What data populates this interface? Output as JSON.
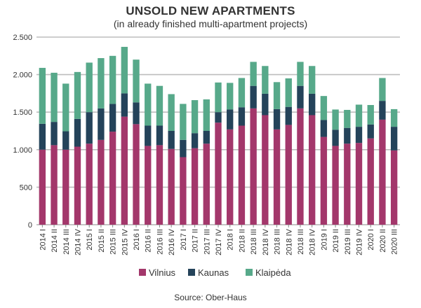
{
  "header": {
    "title": "UNSOLD NEW APARTMENTS",
    "subtitle": "(in already finished multi-apartment projects)"
  },
  "source": "Source: Ober-Haus",
  "chart_data": {
    "type": "bar",
    "stacked": true,
    "title": "UNSOLD NEW APARTMENTS",
    "subtitle": "(in already finished multi-apartment projects)",
    "xlabel": "",
    "ylabel": "",
    "ylim": [
      0,
      2500
    ],
    "yticks": [
      0,
      500,
      1000,
      1500,
      2000,
      2500
    ],
    "ytick_labels": [
      "0",
      "500",
      "1.000",
      "1.500",
      "2.000",
      "2.500"
    ],
    "grid": "horizontal",
    "legend_position": "bottom",
    "categories": [
      "2014 I",
      "2014 II",
      "2014 III",
      "2014 IV",
      "2015 I",
      "2015 II",
      "2015 III",
      "2015 IV",
      "2016 I",
      "2016 II",
      "2016 III",
      "2016 IV",
      "2017 I",
      "2017 II",
      "2017 III",
      "2017 IV",
      "2018 I",
      "2018 II",
      "2018 III",
      "2018 IV",
      "2018 III",
      "2018 IV",
      "2018 III",
      "2018 IV",
      "2019 I",
      "2019 II",
      "2019 III",
      "2019 IV",
      "2020 I",
      "2020 II",
      "2020 III"
    ],
    "series": [
      {
        "name": "Vilnius",
        "color": "#a3376b",
        "values": [
          1000,
          1060,
          1000,
          1040,
          1080,
          1130,
          1240,
          1440,
          1340,
          1050,
          1060,
          1010,
          900,
          1020,
          1080,
          1360,
          1270,
          1320,
          1550,
          1460,
          1270,
          1330,
          1550,
          1460,
          1170,
          1050,
          1080,
          1090,
          1150,
          1400,
          990
        ]
      },
      {
        "name": "Kaunas",
        "color": "#24435a",
        "values": [
          345,
          310,
          245,
          370,
          420,
          420,
          370,
          310,
          290,
          270,
          260,
          240,
          230,
          200,
          170,
          140,
          265,
          245,
          300,
          285,
          270,
          240,
          300,
          285,
          225,
          215,
          210,
          215,
          185,
          250,
          315
        ]
      },
      {
        "name": "Klaipėda",
        "color": "#57a98a",
        "values": [
          745,
          655,
          635,
          625,
          660,
          670,
          640,
          620,
          570,
          560,
          530,
          490,
          480,
          440,
          420,
          395,
          355,
          390,
          320,
          370,
          360,
          380,
          320,
          370,
          320,
          270,
          240,
          295,
          260,
          305,
          235
        ]
      }
    ]
  }
}
